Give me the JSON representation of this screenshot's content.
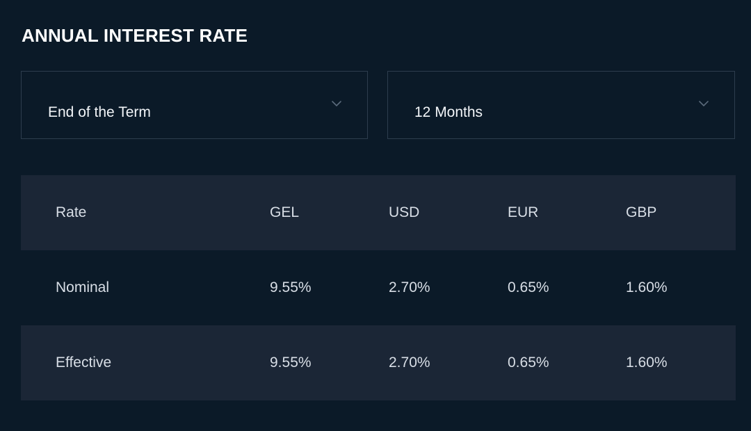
{
  "title": "ANNUAL INTEREST RATE",
  "filters": {
    "payout": {
      "value": "End of the Term",
      "icon": "chevron-down-icon"
    },
    "term": {
      "value": "12 Months",
      "icon": "chevron-down-icon"
    }
  },
  "table": {
    "headers": [
      "Rate",
      "GEL",
      "USD",
      "EUR",
      "GBP"
    ],
    "rows": [
      [
        "Nominal",
        "9.55%",
        "2.70%",
        "0.65%",
        "1.60%"
      ],
      [
        "Effective",
        "9.55%",
        "2.70%",
        "0.65%",
        "1.60%"
      ]
    ]
  },
  "colors": {
    "background": "#0b1a28",
    "shaded_row": "#1b2636",
    "border": "#2d3d4e",
    "text": "#ffffff"
  }
}
